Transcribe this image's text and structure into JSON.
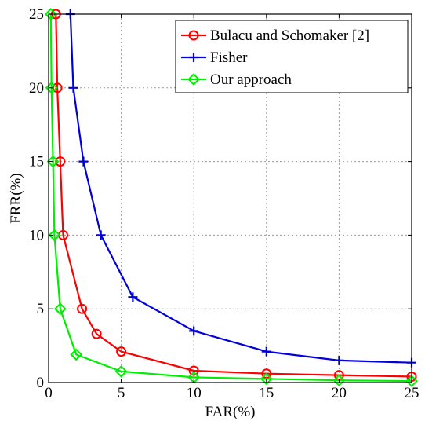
{
  "chart_data": {
    "type": "line",
    "title": "",
    "xlabel": "FAR(%)",
    "ylabel": "FRR(%)",
    "xlim": [
      0,
      25
    ],
    "ylim": [
      0,
      25
    ],
    "xticks": [
      "0",
      "5",
      "10",
      "15",
      "20",
      "25"
    ],
    "yticks": [
      "0",
      "5",
      "10",
      "15",
      "20",
      "25"
    ],
    "grid": true,
    "legend_position": "top-right",
    "series": [
      {
        "name": "Bulacu and Schomaker [2]",
        "color": "#ff0000",
        "marker": "circle",
        "x": [
          0.5,
          0.6,
          0.8,
          1.0,
          2.3,
          3.3,
          5.0,
          10.0,
          15.0,
          20.0,
          25.0
        ],
        "y": [
          25,
          20,
          15,
          10,
          5,
          3.3,
          2.1,
          0.8,
          0.6,
          0.5,
          0.4
        ]
      },
      {
        "name": "Fisher",
        "color": "#0000dd",
        "marker": "plus",
        "x": [
          1.5,
          1.7,
          2.4,
          3.6,
          5.8,
          10.0,
          15.0,
          20.0,
          25.0
        ],
        "y": [
          25,
          20,
          15,
          10,
          5.8,
          3.5,
          2.1,
          1.5,
          1.35
        ]
      },
      {
        "name": "Our approach",
        "color": "#00ee00",
        "marker": "diamond",
        "x": [
          0.15,
          0.2,
          0.3,
          0.4,
          0.8,
          1.9,
          5.0,
          10.0,
          15.0,
          20.0,
          25.0
        ],
        "y": [
          25,
          20,
          15,
          10,
          5,
          1.9,
          0.75,
          0.35,
          0.25,
          0.15,
          0.1
        ]
      }
    ]
  }
}
